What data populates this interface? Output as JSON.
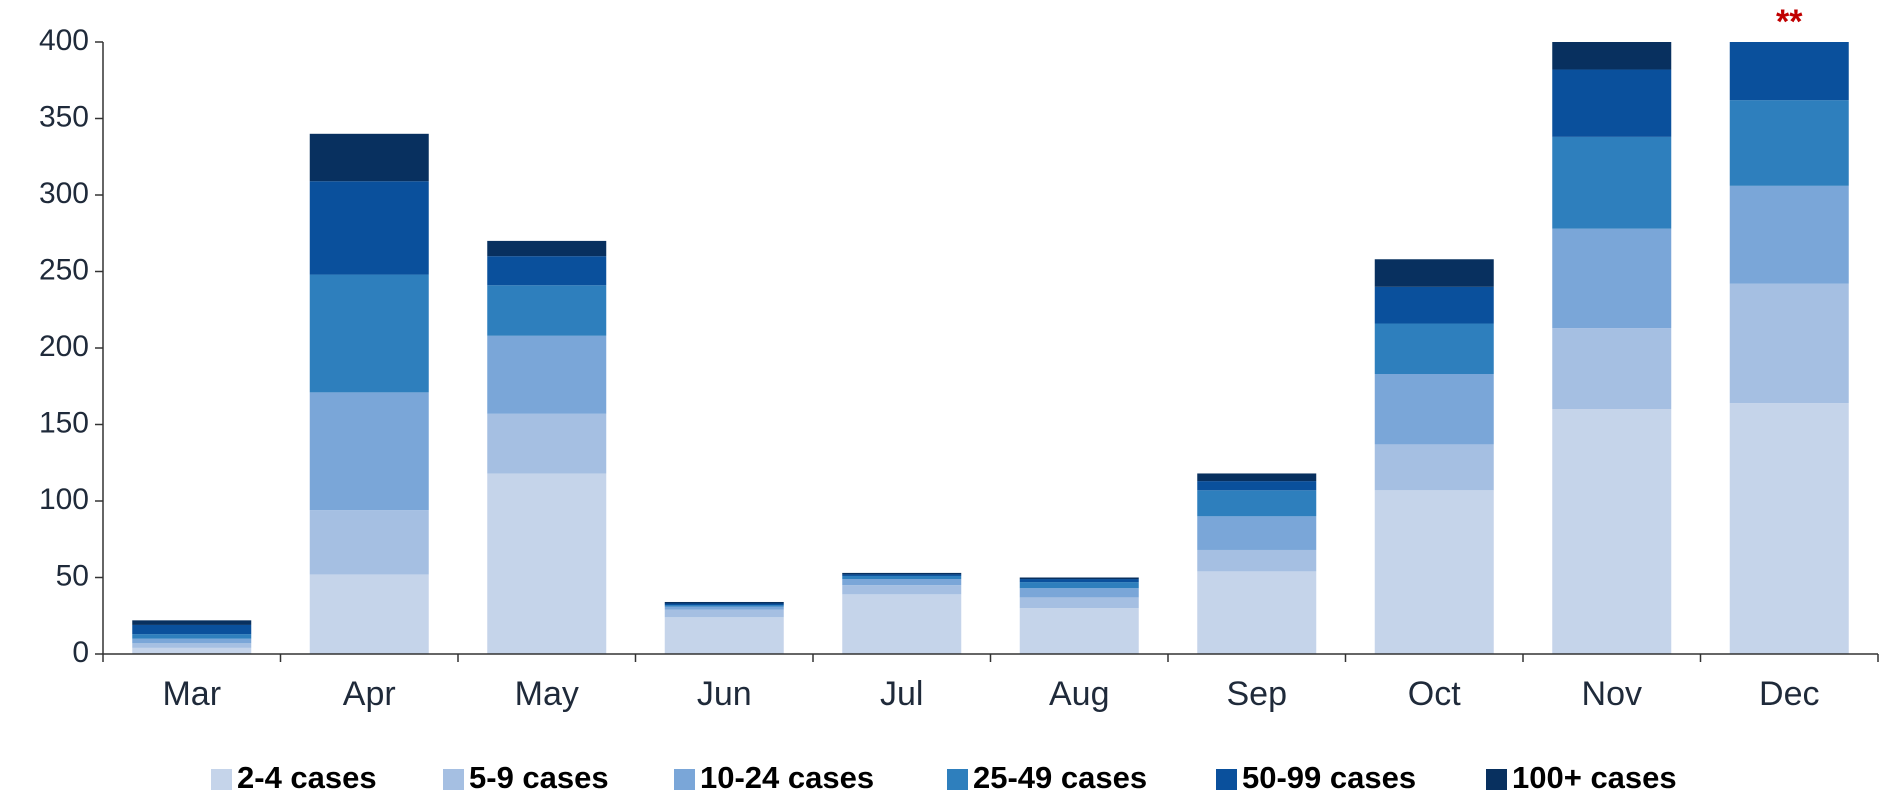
{
  "chart_data": {
    "type": "stacked_bar",
    "annotation": "**",
    "categories": [
      "Mar",
      "Apr",
      "May",
      "Jun",
      "Jul",
      "Aug",
      "Sep",
      "Oct",
      "Nov",
      "Dec"
    ],
    "series": [
      {
        "name": "2-4 cases",
        "color": "#c5d4ea",
        "values": [
          4,
          52,
          118,
          24,
          39,
          30,
          54,
          107,
          160,
          164
        ]
      },
      {
        "name": "5-9 cases",
        "color": "#a5bfe2",
        "values": [
          3,
          42,
          39,
          5,
          6,
          7,
          14,
          30,
          53,
          78
        ]
      },
      {
        "name": "10-24 cases",
        "color": "#7aa6d8",
        "values": [
          3,
          77,
          51,
          2,
          4,
          6,
          22,
          46,
          65,
          64
        ]
      },
      {
        "name": "25-49 cases",
        "color": "#2e7fbd",
        "values": [
          3,
          77,
          33,
          1,
          2,
          4,
          17,
          33,
          60,
          56
        ]
      },
      {
        "name": "50-99 cases",
        "color": "#0a509c",
        "values": [
          6,
          61,
          19,
          1,
          1,
          2,
          6,
          24,
          44,
          38
        ]
      },
      {
        "name": "100+ cases",
        "color": "#08305f",
        "values": [
          3,
          31,
          10,
          1,
          1,
          1,
          5,
          18,
          18,
          0
        ]
      }
    ],
    "ylim": [
      0,
      400
    ],
    "yticks": [
      0,
      50,
      100,
      150,
      200,
      250,
      300,
      350,
      400
    ]
  }
}
